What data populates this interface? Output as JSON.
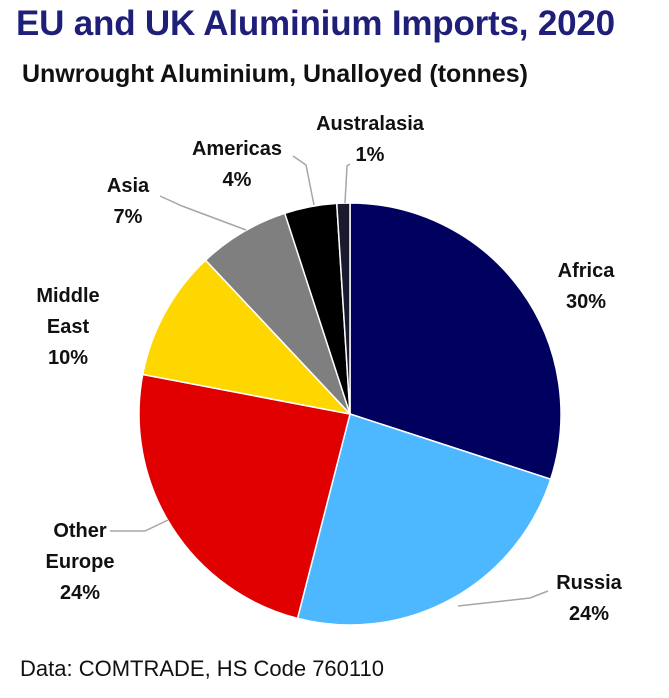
{
  "title": "EU and UK Aluminium Imports, 2020",
  "subtitle": "Unwrought Aluminium, Unalloyed (tonnes)",
  "footer": "Data: COMTRADE,  HS Code 760110",
  "chart_data": {
    "type": "pie",
    "title": "EU and UK Aluminium Imports, 2020",
    "subtitle": "Unwrought Aluminium, Unalloyed (tonnes)",
    "slices": [
      {
        "label": "Africa",
        "percent_label": "30%",
        "value": 30,
        "color": "#00005e",
        "lines": [
          "Africa",
          "30%"
        ]
      },
      {
        "label": "Russia",
        "percent_label": "24%",
        "value": 24,
        "color": "#4db8ff",
        "lines": [
          "Russia",
          "24%"
        ]
      },
      {
        "label": "Other Europe",
        "percent_label": "24%",
        "value": 24,
        "color": "#e00000",
        "lines": [
          "Other",
          "Europe",
          "24%"
        ]
      },
      {
        "label": "Middle East",
        "percent_label": "10%",
        "value": 10,
        "color": "#ffd700",
        "lines": [
          "Middle",
          "East",
          "10%"
        ]
      },
      {
        "label": "Asia",
        "percent_label": "7%",
        "value": 7,
        "color": "#7f7f7f",
        "lines": [
          "Asia",
          "7%"
        ]
      },
      {
        "label": "Americas",
        "percent_label": "4%",
        "value": 4,
        "color": "#000000",
        "lines": [
          "Americas",
          "4%"
        ]
      },
      {
        "label": "Australasia",
        "percent_label": "1%",
        "value": 1,
        "color": "#1a1a2e",
        "lines": [
          "Australasia",
          "1%"
        ]
      }
    ]
  }
}
